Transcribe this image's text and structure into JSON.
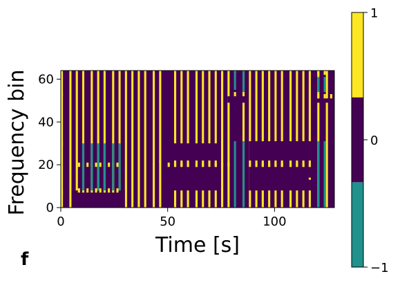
{
  "panel_label": "f",
  "colors": {
    "neg": "#21918c",
    "zero": "#440154",
    "pos": "#fde725",
    "axis": "#000000"
  },
  "chart_data": {
    "type": "heatmap",
    "title": "",
    "xlabel": "Time [s]",
    "ylabel": "Frequency bin",
    "xlim": [
      0,
      128
    ],
    "ylim": [
      0,
      64
    ],
    "x_ticks": [
      0,
      50,
      100
    ],
    "y_ticks": [
      0,
      20,
      40,
      60
    ],
    "colorbar": {
      "levels": [
        -1,
        0,
        1
      ],
      "ticks": [
        1,
        0,
        -1
      ],
      "tick_labels": [
        "1",
        "0",
        "−1"
      ],
      "colors": [
        "#21918c",
        "#440154",
        "#fde725"
      ]
    },
    "full_bins": [
      0,
      63
    ],
    "yellow_columns": [
      0,
      4,
      7,
      10,
      14,
      17,
      20,
      24,
      27,
      30,
      33,
      36,
      39,
      43,
      46,
      53,
      56,
      59,
      63,
      66,
      69,
      72,
      75,
      78,
      85,
      88,
      91,
      94,
      97,
      100,
      103,
      107,
      110,
      113,
      116,
      120,
      124
    ],
    "yellow_segments": [
      {
        "t": 0,
        "f": [
          52,
          54
        ]
      },
      {
        "t": 0,
        "f": [
          29,
          31
        ]
      },
      {
        "t": 0,
        "f": [
          6,
          8
        ]
      },
      {
        "t": 46,
        "f": [
          21,
          22
        ]
      },
      {
        "t": 50,
        "f": [
          19,
          21
        ]
      },
      {
        "t": 53,
        "f": [
          19,
          21
        ]
      },
      {
        "t": 56,
        "f": [
          19,
          21
        ]
      },
      {
        "t": 59,
        "f": [
          19,
          21
        ]
      },
      {
        "t": 63,
        "f": [
          19,
          21
        ]
      },
      {
        "t": 66,
        "f": [
          19,
          21
        ]
      },
      {
        "t": 72,
        "f": [
          19,
          21
        ]
      },
      {
        "t": 75,
        "f": [
          19,
          21
        ]
      },
      {
        "t": 78,
        "f": [
          19,
          21
        ]
      },
      {
        "t": 81,
        "f": [
          52,
          54
        ]
      },
      {
        "t": 81,
        "f": [
          63,
          64
        ]
      },
      {
        "t": 91,
        "f": [
          19,
          21
        ]
      },
      {
        "t": 94,
        "f": [
          19,
          21
        ]
      },
      {
        "t": 97,
        "f": [
          19,
          21
        ]
      },
      {
        "t": 100,
        "f": [
          19,
          21
        ]
      },
      {
        "t": 103,
        "f": [
          19,
          21
        ]
      },
      {
        "t": 107,
        "f": [
          19,
          21
        ]
      },
      {
        "t": 110,
        "f": [
          19,
          21
        ]
      },
      {
        "t": 113,
        "f": [
          19,
          21
        ]
      },
      {
        "t": 116,
        "f": [
          19,
          21
        ]
      },
      {
        "t": 116,
        "f": [
          13,
          14
        ]
      },
      {
        "t": 120,
        "f": [
          51,
          53
        ]
      },
      {
        "t": 120,
        "f": [
          62,
          64
        ]
      },
      {
        "t": 123,
        "f": [
          51,
          53
        ]
      },
      {
        "t": 123,
        "f": [
          62,
          64
        ]
      },
      {
        "t": 126,
        "f": [
          51,
          53
        ]
      }
    ],
    "yellow_blocks": [
      {
        "t": [
          8,
          28
        ],
        "f": [
          19,
          21
        ]
      },
      {
        "t": [
          8,
          28
        ],
        "f": [
          7,
          9
        ]
      }
    ],
    "teal_segments": [
      {
        "t": 10,
        "f": [
          8,
          30
        ]
      },
      {
        "t": 14,
        "f": [
          8,
          30
        ]
      },
      {
        "t": 17,
        "f": [
          8,
          30
        ]
      },
      {
        "t": 20,
        "f": [
          8,
          30
        ]
      },
      {
        "t": 24,
        "f": [
          8,
          30
        ]
      },
      {
        "t": 27,
        "f": [
          8,
          30
        ]
      },
      {
        "t": 81,
        "f": [
          0,
          31
        ]
      },
      {
        "t": 85,
        "f": [
          0,
          31
        ]
      },
      {
        "t": 81,
        "f": [
          55,
          64
        ]
      },
      {
        "t": 85,
        "f": [
          54,
          64
        ]
      },
      {
        "t": 120,
        "f": [
          0,
          31
        ]
      },
      {
        "t": 123,
        "f": [
          0,
          31
        ]
      },
      {
        "t": 120,
        "f": [
          54,
          61
        ]
      },
      {
        "t": 123,
        "f": [
          54,
          61
        ]
      }
    ],
    "purple_blocks": [
      {
        "t": [
          5,
          30
        ],
        "f": [
          0,
          8
        ]
      },
      {
        "t": [
          48,
          74
        ],
        "f": [
          8,
          19
        ]
      },
      {
        "t": [
          48,
          74
        ],
        "f": [
          22,
          30
        ]
      },
      {
        "t": [
          88,
          117
        ],
        "f": [
          8,
          19
        ]
      },
      {
        "t": [
          88,
          117
        ],
        "f": [
          22,
          31
        ]
      },
      {
        "t": [
          78,
          87
        ],
        "f": [
          49,
          52
        ]
      },
      {
        "t": [
          118,
          126
        ],
        "f": [
          49,
          51
        ]
      }
    ]
  }
}
